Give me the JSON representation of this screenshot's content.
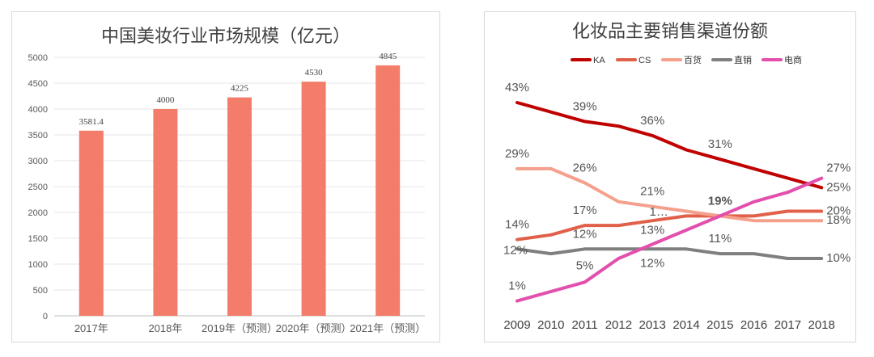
{
  "chart_data": [
    {
      "type": "bar",
      "title": "中国美妆行业市场规模（亿元）",
      "categories": [
        "2017年",
        "2018年",
        "2019年（预测）",
        "2020年（预测）",
        "2021年（预测）"
      ],
      "values": [
        3581.4,
        4000,
        4225,
        4530,
        4845
      ],
      "value_labels": [
        "3581.4",
        "4000",
        "4225",
        "4530",
        "4845"
      ],
      "ylim": [
        0,
        5000
      ],
      "yticks": [
        "0",
        "500",
        "1000",
        "1500",
        "2000",
        "2500",
        "3000",
        "3500",
        "4000",
        "4500",
        "5000"
      ],
      "grid": true,
      "color": "#f47c6a"
    },
    {
      "type": "line",
      "title": "化妆品主要销售渠道份额",
      "x": [
        "2009",
        "2010",
        "2011",
        "2012",
        "2013",
        "2014",
        "2015",
        "2016",
        "2017",
        "2018"
      ],
      "ylim": [
        0,
        50
      ],
      "legend_position": "top",
      "series": [
        {
          "name": "KA",
          "color": "#c00000",
          "values": [
            43,
            41,
            39,
            38,
            36,
            33,
            31,
            29,
            27,
            25
          ]
        },
        {
          "name": "CS",
          "color": "#e0604a",
          "values": [
            14,
            15,
            17,
            17,
            18,
            19,
            19,
            19,
            20,
            20
          ]
        },
        {
          "name": "百货",
          "color": "#f4a08c",
          "values": [
            29,
            29,
            26,
            22,
            21,
            20,
            19,
            18,
            18,
            18
          ]
        },
        {
          "name": "直销",
          "color": "#7f7f7f",
          "values": [
            12,
            11,
            12,
            12,
            12,
            12,
            11,
            11,
            10,
            10
          ]
        },
        {
          "name": "电商",
          "color": "#e34fad",
          "values": [
            1,
            3,
            5,
            10,
            13,
            16,
            19,
            22,
            24,
            27
          ]
        }
      ],
      "annotations": [
        {
          "text": "43%",
          "x": "2009",
          "y": 43
        },
        {
          "text": "39%",
          "x": "2011",
          "y": 39
        },
        {
          "text": "36%",
          "x": "2013",
          "y": 36
        },
        {
          "text": "31%",
          "x": "2015",
          "y": 31
        },
        {
          "text": "29%",
          "x": "2009",
          "y": 29
        },
        {
          "text": "26%",
          "x": "2011",
          "y": 26
        },
        {
          "text": "21%",
          "x": "2013",
          "y": 21
        },
        {
          "text": "14%",
          "x": "2009",
          "y": 14
        },
        {
          "text": "17%",
          "x": "2011",
          "y": 17
        },
        {
          "text": "1…",
          "x": "2013",
          "y": 18
        },
        {
          "text": "19%",
          "x": "2015",
          "y": 19
        },
        {
          "text": "12%",
          "x": "2009",
          "y": 12
        },
        {
          "text": "12%",
          "x": "2011",
          "y": 12
        },
        {
          "text": "13%",
          "x": "2013",
          "y": 13
        },
        {
          "text": "11%",
          "x": "2015",
          "y": 11
        },
        {
          "text": "12%",
          "x": "2013",
          "y": 12
        },
        {
          "text": "1%",
          "x": "2009",
          "y": 1
        },
        {
          "text": "5%",
          "x": "2011",
          "y": 5
        },
        {
          "text": "27%",
          "x": "2018",
          "y": 27
        },
        {
          "text": "25%",
          "x": "2018",
          "y": 25
        },
        {
          "text": "20%",
          "x": "2018",
          "y": 20
        },
        {
          "text": "18%",
          "x": "2018",
          "y": 18
        },
        {
          "text": "10%",
          "x": "2018",
          "y": 10
        }
      ]
    }
  ]
}
